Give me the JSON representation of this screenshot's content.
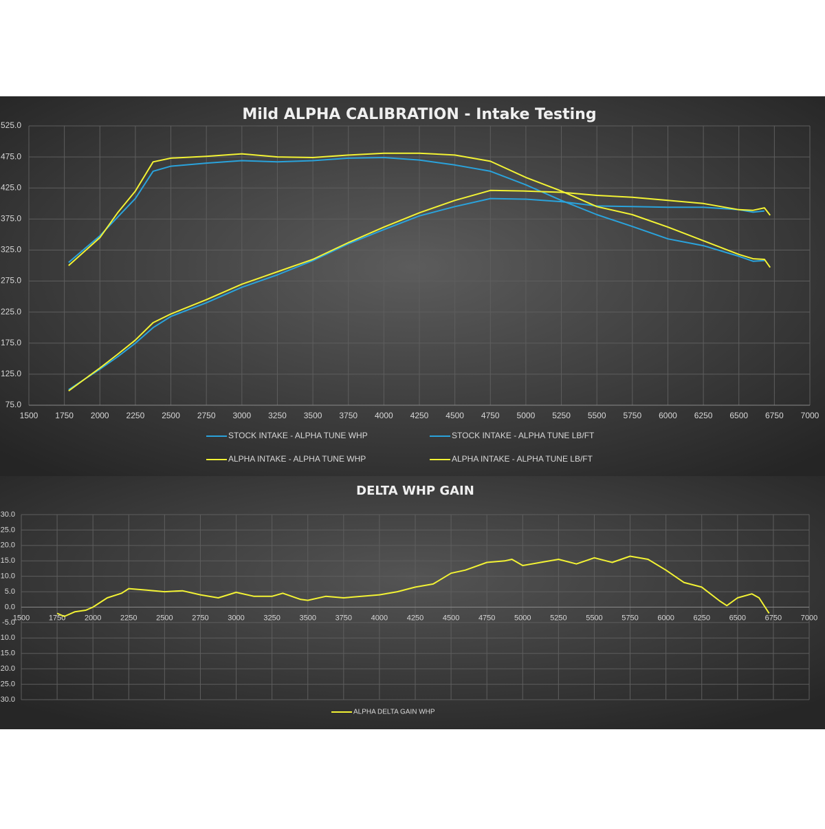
{
  "chart_data": [
    {
      "type": "line",
      "title": "Mild ALPHA CALIBRATION - Intake Testing",
      "x": [
        1780,
        2000,
        2125,
        2250,
        2375,
        2500,
        2750,
        3000,
        3250,
        3500,
        3750,
        4000,
        4250,
        4500,
        4750,
        5000,
        5250,
        5500,
        5750,
        6000,
        6250,
        6500,
        6600,
        6680,
        6720
      ],
      "series": [
        {
          "name": "STOCK INTAKE - ALPHA TUNE WHP",
          "color": "#2aa3dc",
          "values": [
            100,
            133,
            153,
            175,
            200,
            218,
            240,
            265,
            285,
            308,
            335,
            358,
            380,
            395,
            408,
            407,
            403,
            396,
            395,
            394,
            394,
            390,
            386,
            388,
            null
          ]
        },
        {
          "name": "STOCK INTAKE - ALPHA TUNE LB/FT",
          "color": "#2aa3dc",
          "values": [
            305,
            348,
            378,
            408,
            452,
            460,
            465,
            469,
            467,
            469,
            473,
            474,
            470,
            462,
            452,
            430,
            405,
            382,
            363,
            343,
            332,
            315,
            307,
            308,
            null
          ]
        },
        {
          "name": "ALPHA INTAKE - ALPHA TUNE WHP",
          "color": "#f3f334",
          "values": [
            98,
            135,
            157,
            180,
            208,
            222,
            245,
            270,
            290,
            310,
            337,
            362,
            385,
            405,
            421,
            420,
            418,
            413,
            410,
            405,
            400,
            390,
            389,
            393,
            381
          ]
        },
        {
          "name": "ALPHA INTAKE - ALPHA TUNE LB/FT",
          "color": "#f3f334",
          "values": [
            300,
            345,
            385,
            420,
            467,
            473,
            476,
            480,
            475,
            474,
            478,
            481,
            481,
            478,
            468,
            442,
            420,
            395,
            382,
            362,
            340,
            318,
            311,
            310,
            297
          ]
        }
      ],
      "xlim": [
        1500,
        7000
      ],
      "ylim": [
        75,
        525
      ],
      "xticks": [
        1500,
        1750,
        2000,
        2250,
        2500,
        2750,
        3000,
        3250,
        3500,
        3750,
        4000,
        4250,
        4500,
        4750,
        5000,
        5250,
        5500,
        5750,
        6000,
        6250,
        6500,
        6750,
        7000
      ],
      "yticks": [
        {
          "value": 75,
          "label": "75.0"
        },
        {
          "value": 125,
          "label": "125.0"
        },
        {
          "value": 175,
          "label": "175.0"
        },
        {
          "value": 225,
          "label": "225.0"
        },
        {
          "value": 275,
          "label": "275.0"
        },
        {
          "value": 325,
          "label": "325.0"
        },
        {
          "value": 375,
          "label": "375.0"
        },
        {
          "value": 425,
          "label": "425.0"
        },
        {
          "value": 475,
          "label": "475.0"
        },
        {
          "value": 525,
          "label": "525.0"
        }
      ],
      "grid": true
    },
    {
      "type": "line",
      "title": "DELTA WHP GAIN",
      "x": [
        1750,
        1800,
        1875,
        1950,
        2000,
        2100,
        2200,
        2250,
        2375,
        2500,
        2625,
        2750,
        2875,
        3000,
        3125,
        3250,
        3325,
        3450,
        3500,
        3625,
        3750,
        3875,
        4000,
        4125,
        4250,
        4375,
        4500,
        4600,
        4750,
        4875,
        4925,
        5000,
        5125,
        5250,
        5375,
        5500,
        5625,
        5750,
        5875,
        6000,
        6125,
        6250,
        6375,
        6425,
        6500,
        6600,
        6650,
        6720
      ],
      "series": [
        {
          "name": "ALPHA DELTA GAIN WHP",
          "color": "#f3f334",
          "values": [
            -2,
            -3,
            -1.5,
            -1,
            0,
            3,
            4.5,
            6,
            5.5,
            5,
            5.3,
            4,
            3,
            4.8,
            3.5,
            3.5,
            4.5,
            2.5,
            2.2,
            3.5,
            3,
            3.5,
            4,
            5,
            6.5,
            7.5,
            11,
            12,
            14.5,
            15,
            15.5,
            13.5,
            14.5,
            15.5,
            14,
            16,
            14.5,
            16.5,
            15.5,
            12,
            8,
            6.5,
            2,
            0.5,
            3,
            4.3,
            3,
            -2
          ]
        }
      ],
      "xlim": [
        1500,
        7000
      ],
      "ylim": [
        -30,
        30
      ],
      "xticks": [
        1500,
        1750,
        2000,
        2250,
        2500,
        2750,
        3000,
        3250,
        3500,
        3750,
        4000,
        4250,
        4500,
        4750,
        5000,
        5250,
        5500,
        5750,
        6000,
        6250,
        6500,
        6750,
        7000
      ],
      "yticks": [
        {
          "value": -30,
          "label": "-30.0"
        },
        {
          "value": -25,
          "label": "-25.0"
        },
        {
          "value": -20,
          "label": "-20.0"
        },
        {
          "value": -15,
          "label": "-15.0"
        },
        {
          "value": -10,
          "label": "-10.0"
        },
        {
          "value": -5,
          "label": "-5.0"
        },
        {
          "value": 0,
          "label": "0.0"
        },
        {
          "value": 5,
          "label": "5.0"
        },
        {
          "value": 10,
          "label": "10.0"
        },
        {
          "value": 15,
          "label": "15.0"
        },
        {
          "value": 20,
          "label": "20.0"
        },
        {
          "value": 25,
          "label": "25.0"
        },
        {
          "value": 30,
          "label": "30.0"
        }
      ],
      "grid": true
    }
  ]
}
